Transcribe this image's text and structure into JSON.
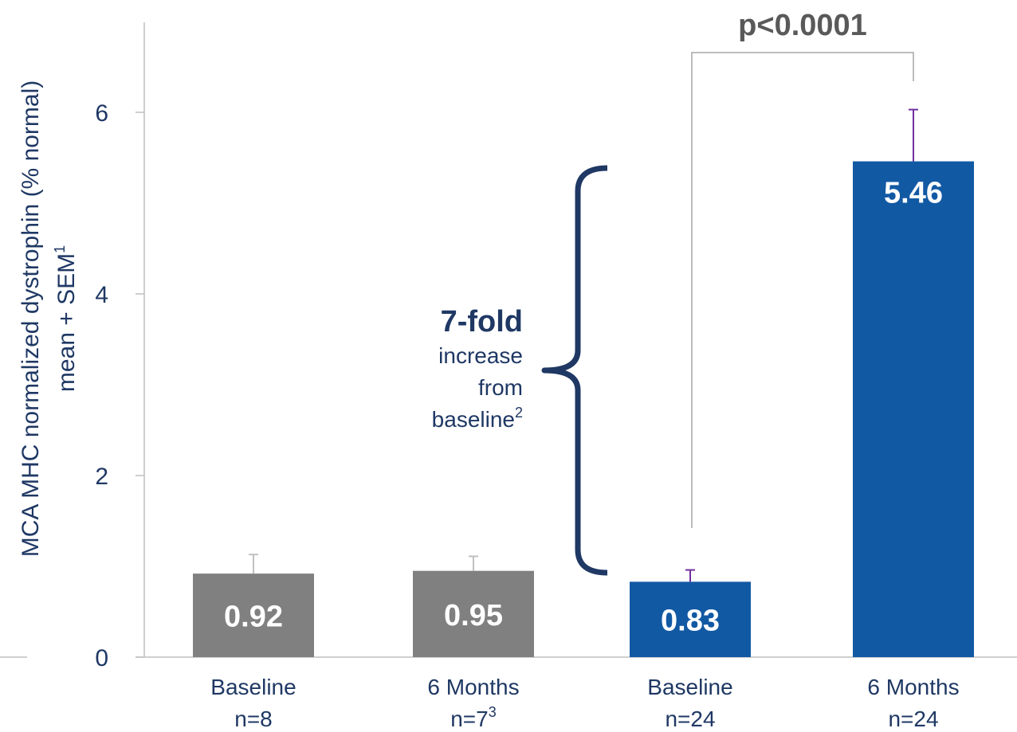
{
  "chart_data": {
    "type": "bar",
    "ylabel_lines": [
      "MCA  MHC normalized dystrophin (% normal)",
      "mean + SEM"
    ],
    "ylabel_superscript": "1",
    "ylim": [
      0,
      7
    ],
    "yticks": [
      0,
      2,
      4,
      6
    ],
    "grid": false,
    "categories": [
      {
        "line1": "Baseline",
        "line2": "n=8",
        "sup": ""
      },
      {
        "line1": "6 Months",
        "line2": "n=7",
        "sup": "3"
      },
      {
        "line1": "Baseline",
        "line2": "n=24",
        "sup": ""
      },
      {
        "line1": "6 Months",
        "line2": "n=24",
        "sup": ""
      }
    ],
    "values": [
      0.92,
      0.95,
      0.83,
      5.46
    ],
    "value_labels": [
      "0.92",
      "0.95",
      "0.83",
      "5.46"
    ],
    "sem": [
      0.21,
      0.16,
      0.13,
      0.57
    ],
    "colors": [
      "#808080",
      "#808080",
      "#1259a4",
      "#1259a4"
    ],
    "error_colors": [
      "#c0c0c0",
      "#c0c0c0",
      "#7030a0",
      "#7030a0"
    ],
    "annotations": {
      "pvalue": "p<0.0001",
      "fold_big": "7-fold",
      "fold_line1": "increase",
      "fold_line2": "from",
      "fold_line3": "baseline",
      "fold_sup": "2"
    }
  }
}
